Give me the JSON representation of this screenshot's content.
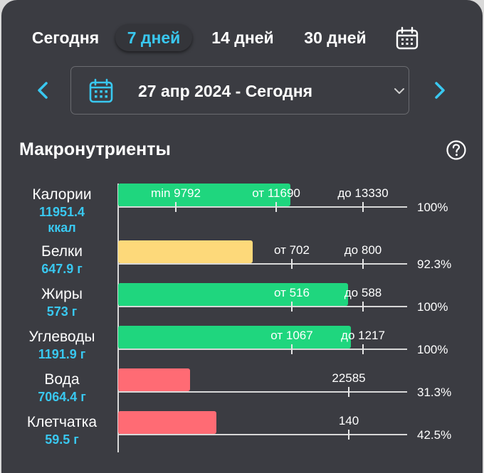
{
  "period_tabs": [
    "Сегодня",
    "7 дней",
    "14 дней",
    "30 дней"
  ],
  "active_tab": "7 дней",
  "date_range": "27 апр 2024 - Сегодня",
  "section_title": "Макронутриенты",
  "colors": {
    "background": "#3b3c42",
    "accent": "#39c8f0",
    "bar_green": "#1fd67e",
    "bar_yellow": "#fdd97a",
    "bar_red": "#ff6b74"
  },
  "icons": [
    "calendar-icon",
    "chevron-left-icon",
    "chevron-right-icon",
    "chevron-down-icon",
    "help-icon"
  ],
  "chart_data": {
    "type": "bar",
    "orientation": "horizontal",
    "rows": [
      {
        "name": "Калории",
        "amount": "11951.4",
        "unit": "ккал",
        "percent": "100%",
        "color": "green",
        "value": 11951.4,
        "markers": [
          {
            "label": "min 9792",
            "value": 9792
          },
          {
            "label": "от 11690",
            "value": 11690
          },
          {
            "label": "до 13330",
            "value": 13330
          }
        ]
      },
      {
        "name": "Белки",
        "amount": "647.9 г",
        "percent": "92.3%",
        "color": "yellow",
        "value": 647.9,
        "markers": [
          {
            "label": "от 702",
            "value": 702
          },
          {
            "label": "до 800",
            "value": 800
          }
        ]
      },
      {
        "name": "Жиры",
        "amount": "573 г",
        "percent": "100%",
        "color": "green",
        "value": 573,
        "markers": [
          {
            "label": "от 516",
            "value": 516
          },
          {
            "label": "до 588",
            "value": 588
          }
        ]
      },
      {
        "name": "Углеводы",
        "amount": "1191.9 г",
        "percent": "100%",
        "color": "green",
        "value": 1191.9,
        "markers": [
          {
            "label": "от 1067",
            "value": 1067
          },
          {
            "label": "до 1217",
            "value": 1217
          }
        ]
      },
      {
        "name": "Вода",
        "amount": "7064.4 г",
        "percent": "31.3%",
        "color": "red",
        "value": 7064.4,
        "markers": [
          {
            "label": "22585",
            "value": 22585
          }
        ]
      },
      {
        "name": "Клетчатка",
        "amount": "59.5 г",
        "percent": "42.5%",
        "color": "red",
        "value": 59.5,
        "markers": [
          {
            "label": "140",
            "value": 140
          }
        ]
      }
    ]
  }
}
